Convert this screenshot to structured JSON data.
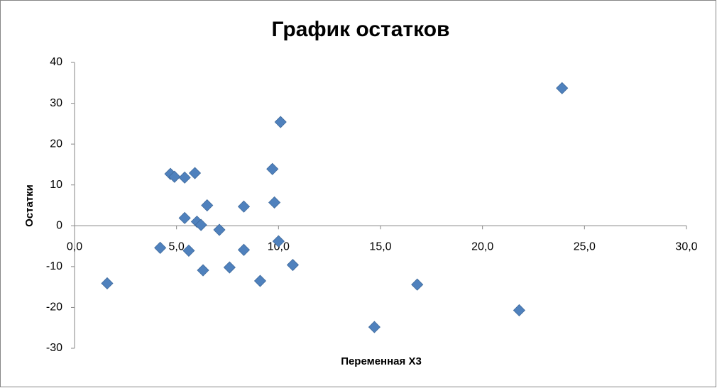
{
  "chart_data": {
    "type": "scatter",
    "title": "График остатков",
    "x_label": "Переменная X3",
    "y_label": "Остатки",
    "color": "#4f81bd",
    "grid": false,
    "x": [
      1.6,
      4.2,
      4.7,
      4.9,
      5.4,
      5.4,
      5.6,
      5.9,
      6.0,
      6.2,
      6.3,
      6.5,
      7.1,
      7.6,
      8.3,
      8.3,
      9.1,
      9.7,
      9.8,
      10.0,
      10.1,
      10.7,
      14.7,
      16.8,
      21.8,
      23.9
    ],
    "values": [
      -14.1,
      -5.4,
      12.7,
      12.0,
      11.8,
      1.9,
      -6.1,
      12.9,
      1.0,
      0.2,
      -10.9,
      5.0,
      -1.0,
      -10.2,
      4.7,
      -5.9,
      -13.5,
      13.9,
      5.7,
      -3.8,
      25.4,
      -9.6,
      -24.8,
      -14.4,
      -20.7,
      33.7
    ],
    "xlim": [
      0,
      30
    ],
    "xticks": [
      {
        "value": 0,
        "label": "0,0"
      },
      {
        "value": 5,
        "label": "5,0"
      },
      {
        "value": 10,
        "label": "10,0"
      },
      {
        "value": 15,
        "label": "15,0"
      },
      {
        "value": 20,
        "label": "20,0"
      },
      {
        "value": 25,
        "label": "25,0"
      },
      {
        "value": 30,
        "label": "30,0"
      }
    ],
    "ylim": [
      -30,
      40
    ],
    "yticks": [
      -30,
      -20,
      -10,
      0,
      10,
      20,
      30,
      40
    ]
  }
}
